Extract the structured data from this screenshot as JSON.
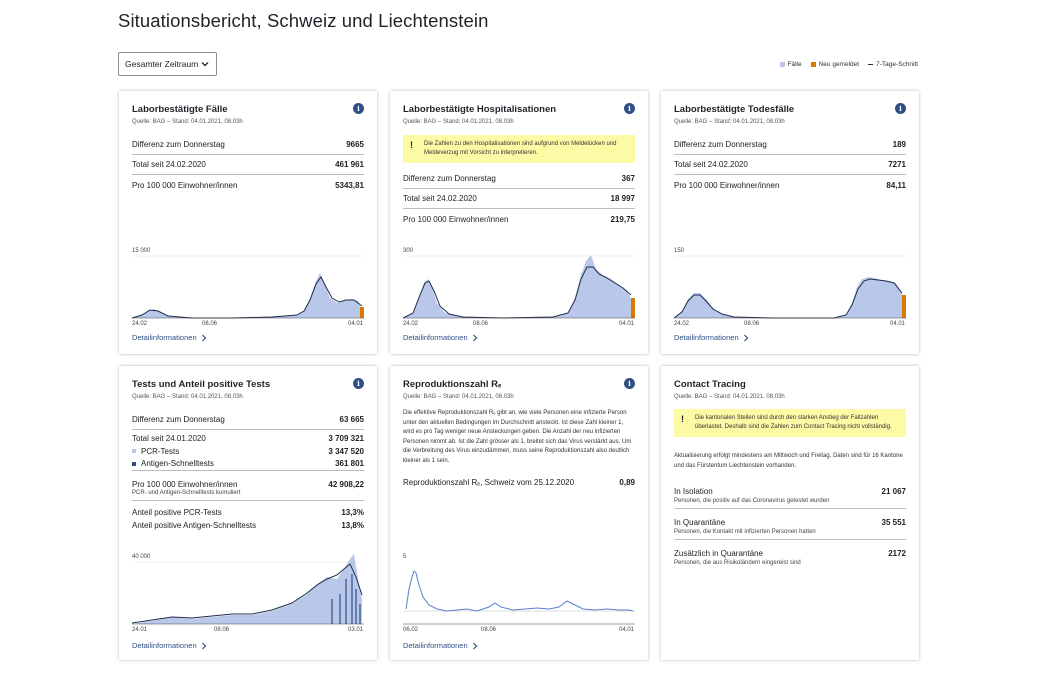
{
  "page": {
    "title": "Situationsbericht, Schweiz und Liechtenstein"
  },
  "range_select": {
    "value": "Gesamter Zeitraum"
  },
  "legend": [
    {
      "label": "Fälle",
      "color": "#b9c8ea"
    },
    {
      "label": "Neu gemeldet",
      "color": "#d97b00"
    },
    {
      "label": "7-Tage-Schnitt",
      "color": "#1f2c4a"
    }
  ],
  "cards": {
    "cases": {
      "title": "Laborbestätigte Fälle",
      "source": "Quelle: BAG – Stand: 04.01.2021, 08.03h",
      "rows": [
        {
          "label": "Differenz zum Donnerstag",
          "value": "9665"
        },
        {
          "label": "Total seit 24.02.2020",
          "value": "461 961"
        },
        {
          "label": "Pro 100 000 Einwohner/innen",
          "value": "5343,81"
        }
      ],
      "chart_ymax_label": "15 000",
      "x_ticks": [
        "24.02",
        "08.06",
        "04.01"
      ],
      "detail": "Detailinformationen"
    },
    "hosp": {
      "title": "Laborbestätigte Hospitalisationen",
      "source": "Quelle: BAG – Stand: 04.01.2021, 08.03h",
      "warning": "Die Zahlen zu den Hospitalisationen sind aufgrund von Meldelücken und Meldeverzug mit Vorsicht zu interpretieren.",
      "rows": [
        {
          "label": "Differenz zum Donnerstag",
          "value": "367"
        },
        {
          "label": "Total seit 24.02.2020",
          "value": "18 997"
        },
        {
          "label": "Pro 100 000 Einwohner/innen",
          "value": "219,75"
        }
      ],
      "chart_ymax_label": "300",
      "x_ticks": [
        "24.02",
        "08.06",
        "04.01"
      ],
      "detail": "Detailinformationen"
    },
    "deaths": {
      "title": "Laborbestätigte Todesfälle",
      "source": "Quelle: BAG – Stand: 04.01.2021, 08.03h",
      "rows": [
        {
          "label": "Differenz zum Donnerstag",
          "value": "189"
        },
        {
          "label": "Total seit 24.02.2020",
          "value": "7271"
        },
        {
          "label": "Pro 100 000 Einwohner/innen",
          "value": "84,11"
        }
      ],
      "chart_ymax_label": "150",
      "x_ticks": [
        "24.02",
        "08.06",
        "04.01"
      ],
      "detail": "Detailinformationen"
    },
    "tests": {
      "title": "Tests und Anteil positive Tests",
      "source": "Quelle: BAG – Stand: 04.01.2021, 08.03h",
      "diff": {
        "label": "Differenz zum Donnerstag",
        "value": "63 665"
      },
      "total": {
        "label": "Total seit 24.01.2020",
        "value": "3 709 321"
      },
      "pcr": {
        "label": "PCR-Tests",
        "value": "3 347 520",
        "color": "#b9c8ea"
      },
      "antigen": {
        "label": "Antigen-Schnelltests",
        "value": "361 801",
        "color": "#2e4f86"
      },
      "per100k": {
        "label": "Pro 100 000 Einwohner/innen",
        "value": "42 908,22",
        "sub": "PCR- und Antigen-Schnelltests kumuliert"
      },
      "pos_pcr": {
        "label": "Anteil positive PCR-Tests",
        "value": "13,3%"
      },
      "pos_antigen": {
        "label": "Anteil positive Antigen-Schnelltests",
        "value": "13,8%"
      },
      "chart_ymax_label": "40 000",
      "x_ticks": [
        "24.01",
        "08.06",
        "03.01"
      ],
      "detail": "Detailinformationen"
    },
    "repro": {
      "title": "Reproduktionszahl Rₑ",
      "source": "Quelle: BAG – Stand: 04.01.2021, 08.03h",
      "text": "Die effektive Reproduktionszahl Rₑ gibt an, wie viele Personen eine infizierte Person unter den aktuellen Bedingungen im Durchschnitt ansteckt. Ist diese Zahl kleiner 1, wird es pro Tag weniger neue Ansteckungen geben. Die Anzahl der neu infizierten Personen nimmt ab. Ist die Zahl grösser als 1, breitet sich das Virus verstärkt aus. Um die Verbreitung des Virus einzudämmen, muss seine Reproduktionszahl also deutlich kleiner als 1 sein.",
      "row": {
        "label": "Reproduktionszahl Rₑ, Schweiz vom 25.12.2020",
        "value": "0,89"
      },
      "chart_ymax_label": "5",
      "x_ticks": [
        "06.02",
        "08.06",
        "04.01"
      ],
      "detail": "Detailinformationen"
    },
    "tracing": {
      "title": "Contact Tracing",
      "source": "Quelle: BAG – Stand: 04.01.2021, 08.03h",
      "warning": "Die kantonalen Stellen sind durch den starken Anstieg der Fallzahlen überlastet. Deshalb sind die Zahlen zum Contact Tracing nicht vollständig.",
      "text": "Aktualisierung erfolgt mindestens am Mittwoch und Freitag. Daten sind für 16 Kantone und das Fürstentum Liechtenstein vorhanden.",
      "rows": [
        {
          "label": "In Isolation",
          "sub": "Personen, die positiv auf das Coronavirus getestet wurden",
          "value": "21 067"
        },
        {
          "label": "In Quarantäne",
          "sub": "Personen, die Kontakt mit infizierten Personen hatten",
          "value": "35 551"
        },
        {
          "label": "Zusätzlich in Quarantäne",
          "sub": "Personen, die aus Risikoländern eingereist sind",
          "value": "2172"
        }
      ]
    }
  }
}
